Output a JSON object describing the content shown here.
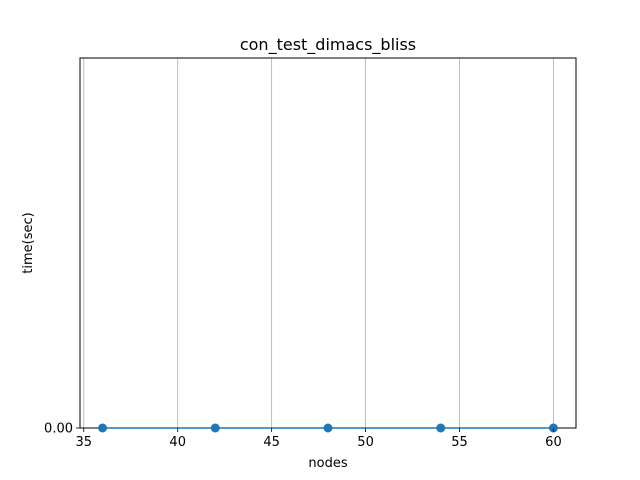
{
  "chart_data": {
    "type": "line",
    "title": "con_test_dimacs_bliss",
    "xlabel": "nodes",
    "ylabel": "time(sec)",
    "x_ticks": [
      35,
      40,
      45,
      50,
      55,
      60
    ],
    "x_tick_labels": [
      "35",
      "40",
      "45",
      "50",
      "55",
      "60"
    ],
    "y_ticks": [
      0.0
    ],
    "y_tick_labels": [
      "0.00"
    ],
    "xlim": [
      34.8,
      61.2
    ],
    "ylim": [
      0.0,
      0.001
    ],
    "grid": "x-major",
    "series": [
      {
        "color": "#1f77b4",
        "x": [
          36,
          42,
          48,
          54,
          60
        ],
        "y": [
          0.0,
          0.0,
          0.0,
          0.0,
          0.0
        ]
      }
    ]
  }
}
